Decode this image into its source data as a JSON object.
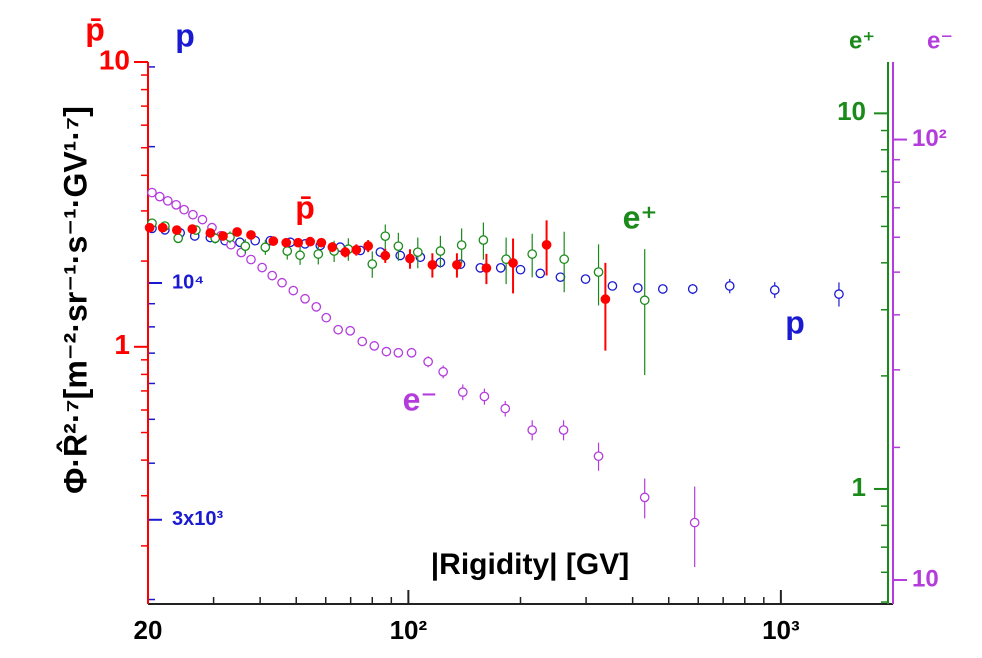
{
  "chart_data": {
    "type": "scatter",
    "x_label": "|Rigidity| [GV]",
    "y_label": "Φ·R̂²·⁷[m⁻²·sr⁻¹·s⁻¹·GV¹·⁷]",
    "x_log": true,
    "xlim": [
      20,
      2000
    ],
    "xticks": [
      {
        "value": 20,
        "label": "20"
      },
      {
        "value": 100,
        "label": "10²"
      },
      {
        "value": 1000,
        "label": "10³"
      }
    ],
    "x_minor_ticks": [
      30,
      40,
      50,
      60,
      70,
      80,
      90,
      200,
      300,
      400,
      500,
      600,
      700,
      800,
      900
    ],
    "axes": [
      {
        "label": "p̄",
        "color": "#ff0000",
        "log": true,
        "lim": [
          0.125,
          10
        ],
        "ticks": [
          10,
          1
        ],
        "minor_ticks": [
          0.2,
          0.3,
          0.4,
          0.5,
          0.6,
          0.7,
          0.8,
          0.9,
          2,
          3,
          4,
          5,
          6,
          7,
          8,
          9
        ]
      },
      {
        "label": "p",
        "color": "#1a1ad0",
        "log": true,
        "lim": [
          1955,
          30760
        ],
        "ticks": [
          {
            "value": 10000,
            "label": "10⁴"
          },
          {
            "value": 3000,
            "label": "3x10³"
          }
        ],
        "minor_ticks": [
          2000,
          4000,
          5000,
          6000,
          7000,
          8000,
          9000,
          20000,
          30000
        ]
      },
      {
        "label": "e⁺",
        "color": "#1a8a1a",
        "log": true,
        "lim": [
          0.494,
          13.7
        ],
        "ticks": [
          10,
          1
        ],
        "minor_ticks": [
          0.5,
          0.6,
          0.7,
          0.8,
          0.9,
          2,
          3,
          4,
          5,
          6,
          7,
          8,
          9
        ]
      },
      {
        "label": "e⁻",
        "color": "#b43cdc",
        "log": true,
        "lim": [
          8.82,
          150
        ],
        "ticks": [
          {
            "value": 100,
            "label": "10²"
          },
          10
        ],
        "minor_ticks": [
          20,
          30,
          40,
          50,
          60,
          70,
          80,
          90
        ]
      }
    ],
    "series": [
      {
        "name": "p",
        "axis": 1,
        "color": "#1a1ad0",
        "filled": false,
        "x": [
          20.5,
          22.2,
          24.4,
          26.7,
          29.4,
          32.2,
          35.3,
          38.8,
          42.6,
          48.2,
          52.8,
          58.0,
          65.6,
          74.3,
          84.1,
          95.1,
          107.7,
          121.9,
          138,
          156,
          177,
          200,
          226,
          256,
          299,
          353,
          413,
          482,
          580,
          729,
          963,
          1432
        ],
        "values": [
          13200,
          13100,
          12900,
          12700,
          12600,
          12400,
          12300,
          12400,
          12400,
          12300,
          12200,
          12100,
          12000,
          11800,
          11700,
          11500,
          11400,
          11100,
          11000,
          10800,
          10800,
          10700,
          10500,
          10300,
          10200,
          9850,
          9750,
          9700,
          9700,
          9850,
          9650,
          9450
        ],
        "errors": [
          80,
          80,
          80,
          80,
          80,
          80,
          80,
          80,
          80,
          80,
          80,
          80,
          80,
          80,
          80,
          80,
          80,
          80,
          80,
          80,
          100,
          100,
          120,
          120,
          150,
          180,
          200,
          200,
          250,
          360,
          390,
          580
        ]
      },
      {
        "name": "e⁻",
        "axis": 3,
        "color": "#b43cdc",
        "filled": false,
        "x": [
          20.5,
          21.5,
          22.6,
          23.8,
          25.0,
          26.4,
          28.0,
          29.7,
          31.4,
          33.4,
          35.6,
          37.8,
          40.5,
          43.1,
          45.8,
          49.1,
          52.8,
          56.6,
          60.2,
          64.8,
          69.8,
          75.2,
          81.0,
          87.3,
          94.0,
          102,
          113,
          124,
          140,
          160,
          182,
          215,
          261,
          324,
          431,
          587
        ],
        "values": [
          75.8,
          74.2,
          72.6,
          71.1,
          69.3,
          67.5,
          65.8,
          63.1,
          60.5,
          57.7,
          55.4,
          53.4,
          51.2,
          49.1,
          47.3,
          45.4,
          43.5,
          41.7,
          39.4,
          37.0,
          36.8,
          34.8,
          34.0,
          33.0,
          32.8,
          32.8,
          31.3,
          29.7,
          26.7,
          26.1,
          24.5,
          21.9,
          21.9,
          19.1,
          15.4,
          13.5
        ],
        "errors": [
          0.4,
          0.4,
          0.4,
          0.4,
          0.4,
          0.4,
          0.4,
          0.4,
          0.4,
          0.4,
          0.4,
          0.4,
          0.4,
          0.4,
          0.4,
          0.4,
          0.4,
          0.4,
          0.5,
          0.6,
          0.7,
          0.7,
          0.7,
          0.8,
          0.8,
          0.8,
          0.9,
          1.0,
          1.1,
          1.1,
          1.0,
          1.15,
          1.15,
          1.4,
          1.6,
          2.8
        ]
      },
      {
        "name": "e⁺",
        "axis": 2,
        "color": "#1a8a1a",
        "filled": false,
        "x": [
          20.5,
          22.2,
          24.1,
          26.9,
          30.3,
          33.2,
          36.5,
          41.3,
          47.3,
          51.2,
          57.3,
          63.2,
          69.0,
          80.0,
          86.7,
          94.0,
          106,
          121.9,
          139,
          159,
          183,
          215,
          262,
          324,
          431
        ],
        "values": [
          5.1,
          5.01,
          4.65,
          4.89,
          4.65,
          4.68,
          4.43,
          4.4,
          4.3,
          4.19,
          4.22,
          4.3,
          4.35,
          3.97,
          4.71,
          4.43,
          4.27,
          4.3,
          4.46,
          4.6,
          4.09,
          4.22,
          4.09,
          3.78,
          3.18
        ],
        "errors": [
          0.11,
          0.11,
          0.13,
          0.14,
          0.15,
          0.17,
          0.19,
          0.2,
          0.22,
          0.24,
          0.26,
          0.28,
          0.3,
          0.32,
          0.35,
          0.38,
          0.4,
          0.42,
          0.48,
          0.52,
          0.58,
          0.56,
          0.75,
          0.7,
          1.17
        ]
      },
      {
        "name": "p̄",
        "axis": 0,
        "color": "#ff0000",
        "filled": true,
        "x": [
          20.2,
          21.9,
          23.9,
          26.3,
          29.4,
          31.8,
          34.7,
          37.8,
          43.4,
          47.0,
          50.6,
          54.5,
          58.4,
          62.5,
          67.7,
          72.5,
          78.0,
          86.7,
          101,
          116,
          135,
          162,
          191,
          235,
          338
        ],
        "values": [
          2.62,
          2.62,
          2.57,
          2.59,
          2.51,
          2.45,
          2.53,
          2.47,
          2.35,
          2.32,
          2.32,
          2.34,
          2.32,
          2.24,
          2.15,
          2.19,
          2.26,
          2.09,
          2.04,
          1.94,
          1.94,
          1.89,
          1.97,
          2.28,
          1.47
        ],
        "errors": [
          0.06,
          0.06,
          0.06,
          0.06,
          0.06,
          0.06,
          0.06,
          0.06,
          0.07,
          0.07,
          0.07,
          0.08,
          0.08,
          0.09,
          0.09,
          0.1,
          0.11,
          0.12,
          0.16,
          0.19,
          0.19,
          0.23,
          0.43,
          0.5,
          0.5
        ]
      }
    ]
  }
}
